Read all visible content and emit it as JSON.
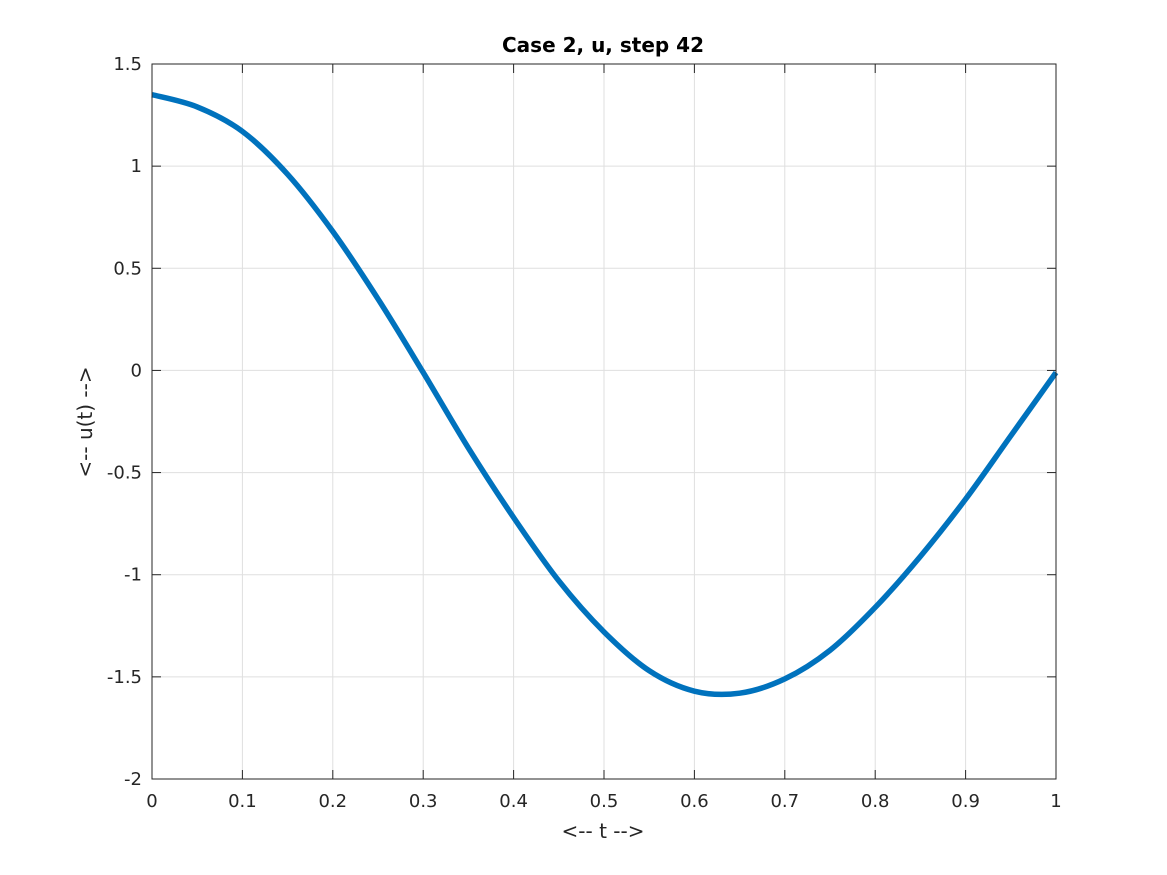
{
  "chart_data": {
    "type": "line",
    "title": "Case 2, u, step 42",
    "xlabel": "<-- t -->",
    "ylabel": "<-- u(t) -->",
    "xlim": [
      0,
      1
    ],
    "ylim": [
      -2,
      1.5
    ],
    "grid": true,
    "xticks": [
      0,
      0.1,
      0.2,
      0.3,
      0.4,
      0.5,
      0.6,
      0.7,
      0.8,
      0.9,
      1
    ],
    "xtick_labels": [
      "0",
      "0.1",
      "0.2",
      "0.3",
      "0.4",
      "0.5",
      "0.6",
      "0.7",
      "0.8",
      "0.9",
      "1"
    ],
    "yticks": [
      1.5,
      1,
      0.5,
      0,
      -0.5,
      -1,
      -1.5,
      -2
    ],
    "ytick_labels": [
      "1.5",
      "1",
      "0.5",
      "0",
      "-0.5",
      "-1",
      "-1.5",
      "-2"
    ],
    "series": [
      {
        "color": "#0072bd",
        "x": [
          0,
          0.05,
          0.1,
          0.15,
          0.2,
          0.25,
          0.3,
          0.35,
          0.4,
          0.45,
          0.5,
          0.55,
          0.6,
          0.65,
          0.7,
          0.75,
          0.8,
          0.85,
          0.9,
          0.95,
          1
        ],
        "y": [
          1.35,
          1.29,
          1.17,
          0.96,
          0.68,
          0.35,
          -0.01,
          -0.38,
          -0.72,
          -1.03,
          -1.28,
          -1.47,
          -1.57,
          -1.58,
          -1.51,
          -1.37,
          -1.16,
          -0.91,
          -0.63,
          -0.32,
          -0.01
        ]
      }
    ]
  }
}
